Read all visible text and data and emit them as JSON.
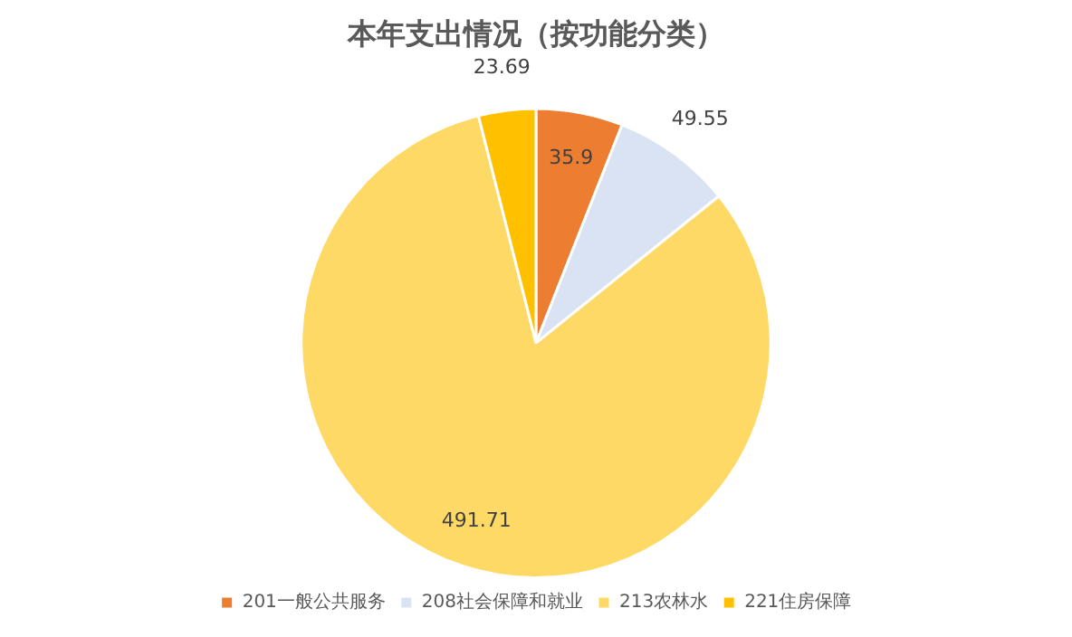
{
  "chart_data": {
    "type": "pie",
    "title": "本年支出情况（按功能分类）",
    "categories": [
      "201一般公共服务",
      "208社会保障和就业",
      "213农林水",
      "221住房保障"
    ],
    "values": [
      35.9,
      49.55,
      491.71,
      23.69
    ],
    "colors": [
      "#ed7d31",
      "#dae3f3",
      "#ffd966",
      "#ffc000"
    ],
    "data_labels": true,
    "legend": "bottom"
  }
}
